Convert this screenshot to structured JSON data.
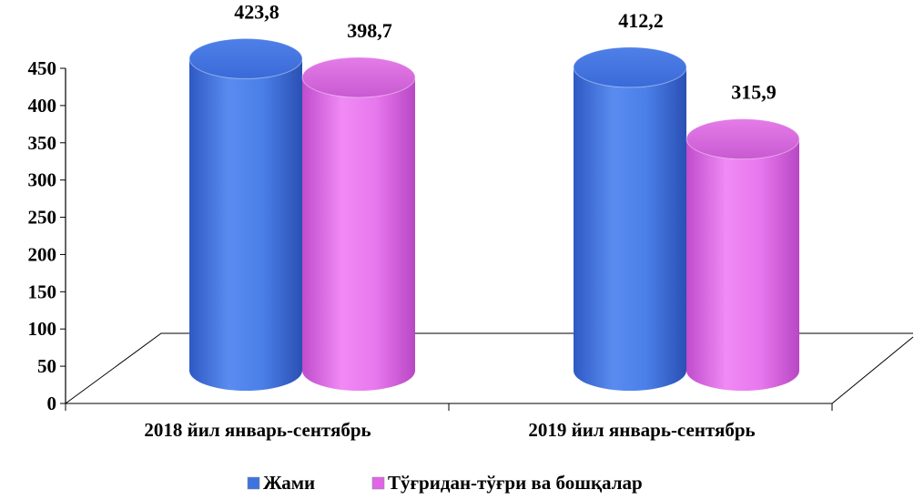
{
  "chart_data": {
    "type": "bar",
    "style": "3d-cylinder",
    "categories": [
      "2018 йил январь-сентябрь",
      "2019 йил январь-сентябрь"
    ],
    "series": [
      {
        "name": "Жами",
        "values": [
          423.8,
          412.2
        ],
        "data_labels": [
          "423,8",
          "412,2"
        ],
        "color": "#3f74e0"
      },
      {
        "name": "Тўғридан-тўғри ва бошқалар",
        "values": [
          398.7,
          315.9
        ],
        "data_labels": [
          "398,7",
          "315,9"
        ],
        "color": "#e066e6"
      }
    ],
    "ylim": [
      0,
      450
    ],
    "yticks": [
      0,
      50,
      100,
      150,
      200,
      250,
      300,
      350,
      400,
      450
    ],
    "grid": false,
    "legend_position": "bottom"
  }
}
